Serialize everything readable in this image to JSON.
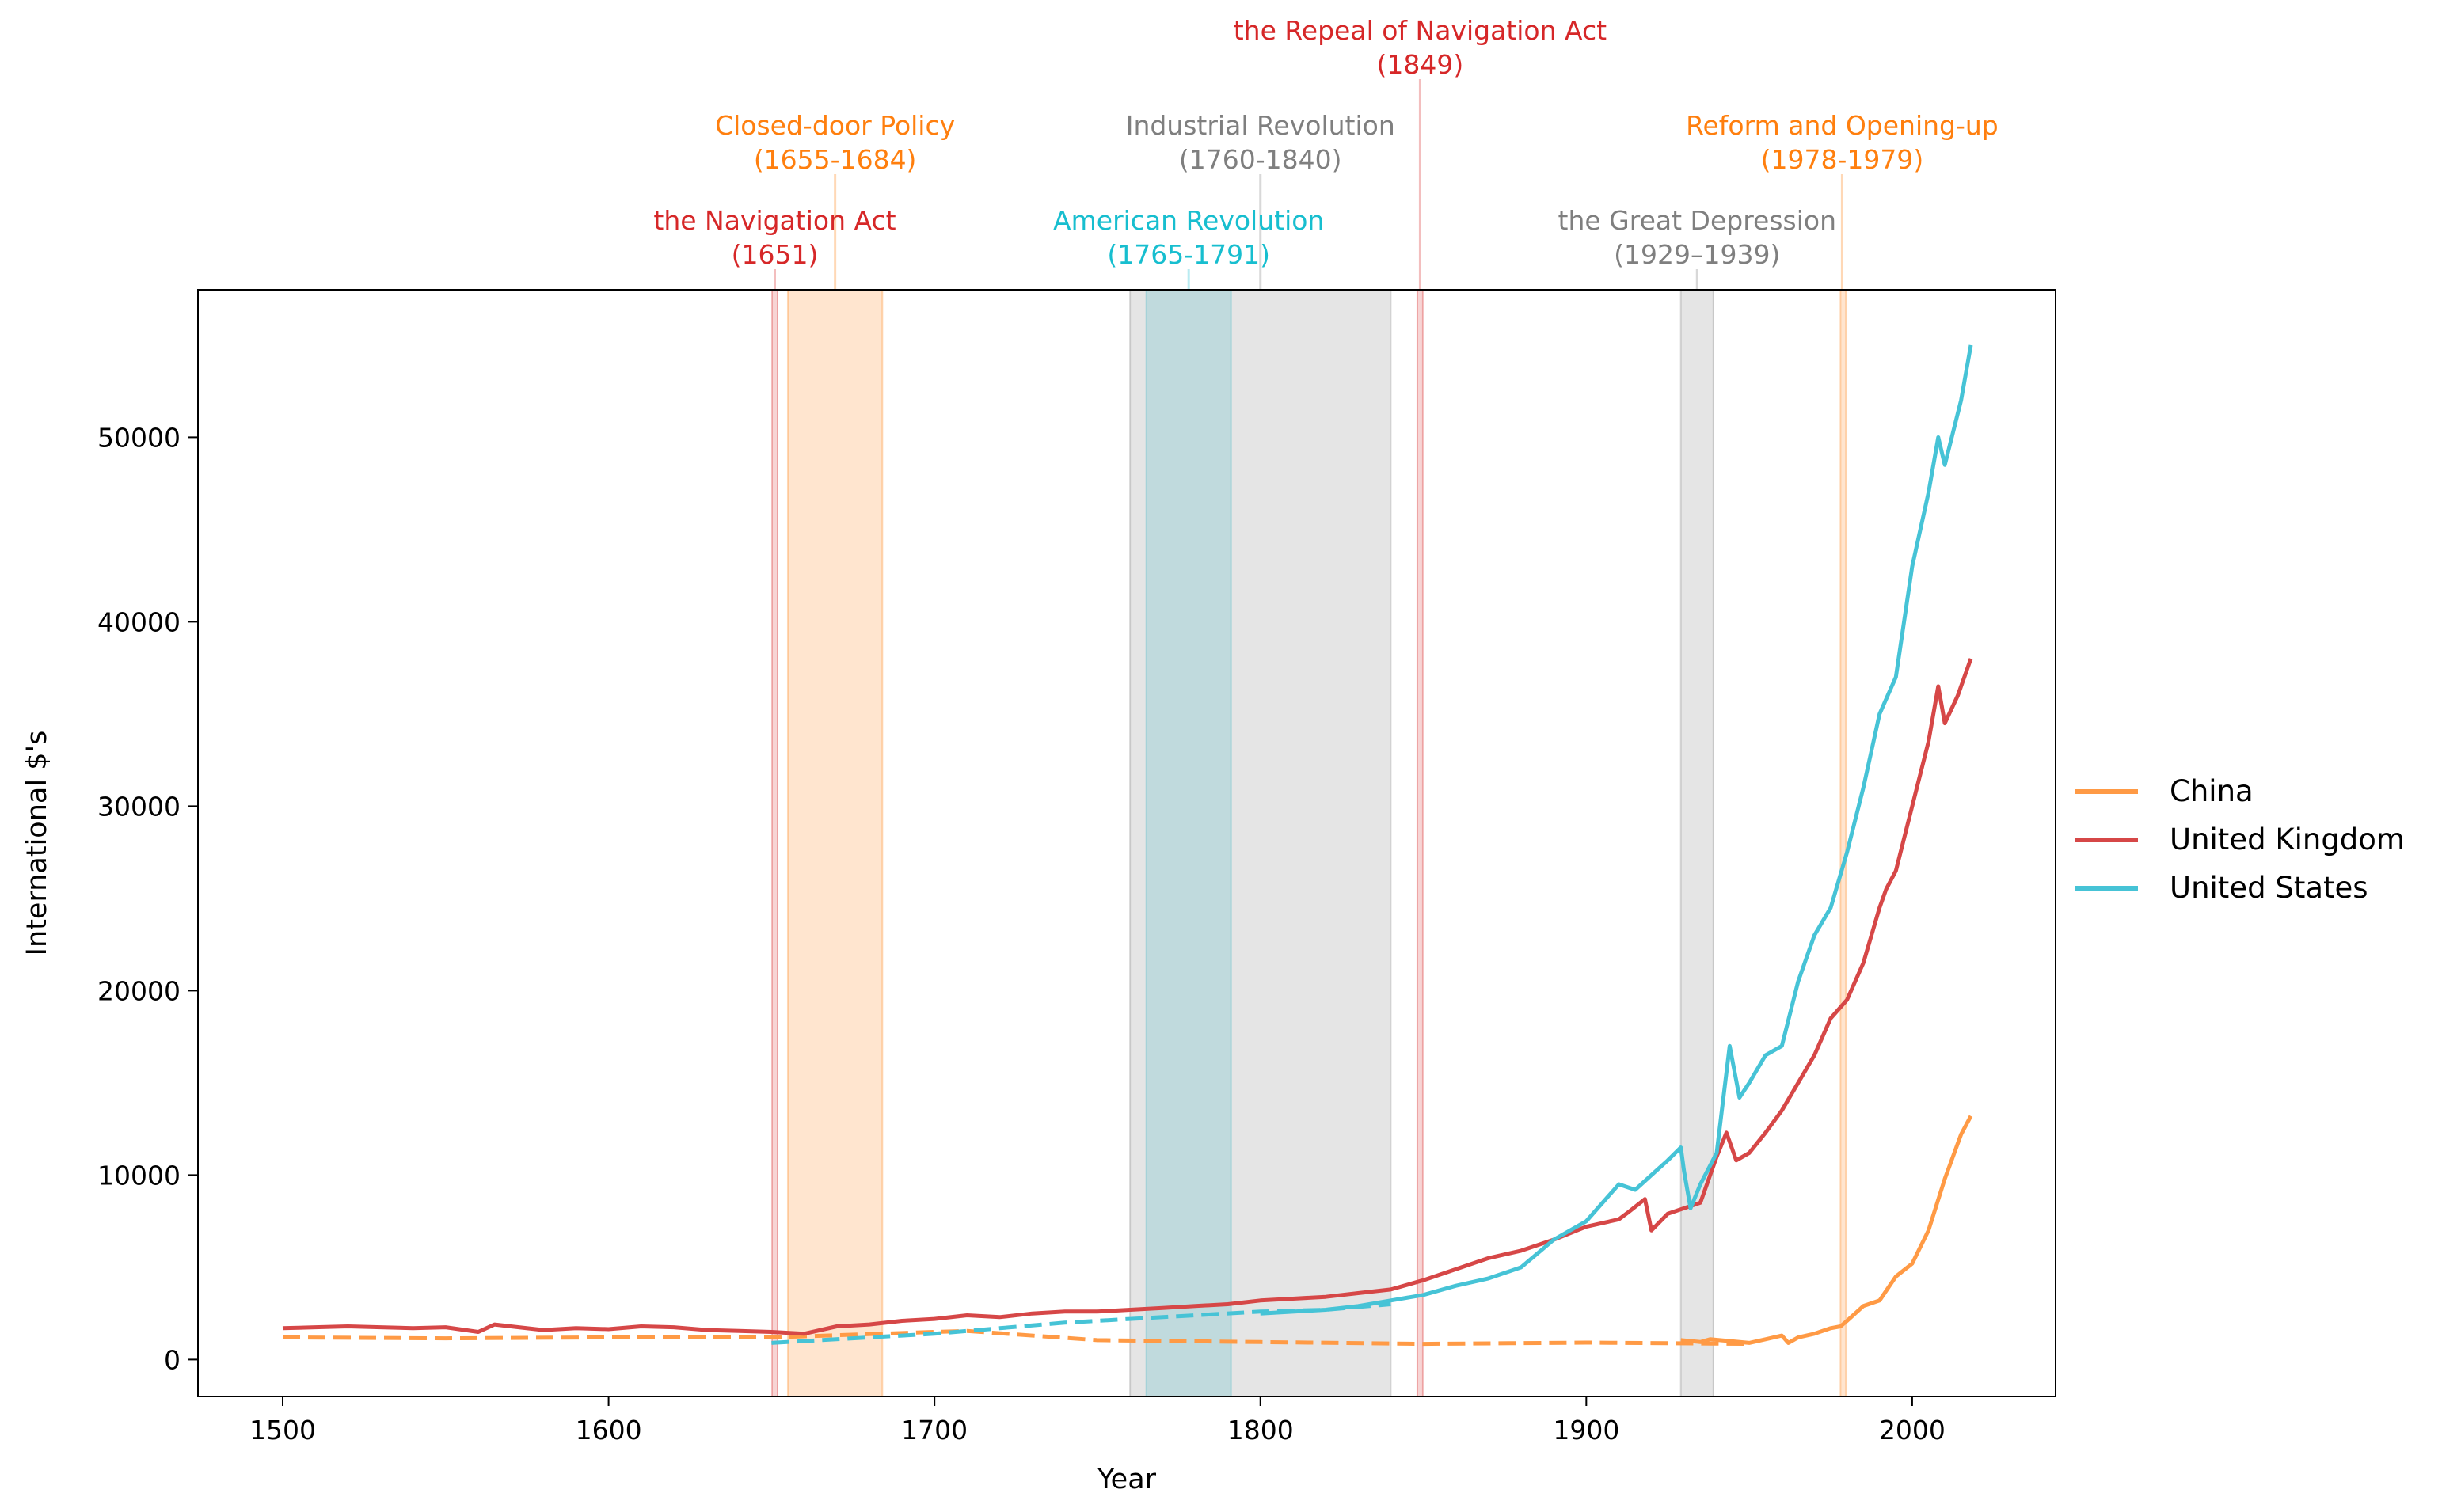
{
  "chart_data": {
    "type": "line",
    "xlabel": "Year",
    "ylabel": "International $'s",
    "xlim": [
      1474,
      2044
    ],
    "ylim": [
      -2000,
      58000
    ],
    "xticks": [
      1500,
      1600,
      1700,
      1800,
      1900,
      2000
    ],
    "yticks": [
      0,
      10000,
      20000,
      30000,
      40000,
      50000
    ],
    "grid": false,
    "legend_position": "right",
    "series": [
      {
        "name": "China",
        "color": "#ff9a45",
        "dashed_segment": [
          [
            1500,
            1200
          ],
          [
            1550,
            1150
          ],
          [
            1600,
            1200
          ],
          [
            1650,
            1200
          ],
          [
            1700,
            1500
          ],
          [
            1710,
            1550
          ],
          [
            1750,
            1050
          ],
          [
            1800,
            950
          ],
          [
            1850,
            850
          ],
          [
            1900,
            920
          ],
          [
            1950,
            850
          ]
        ],
        "solid_segment": [
          [
            1929,
            1050
          ],
          [
            1935,
            950
          ],
          [
            1938,
            1100
          ],
          [
            1950,
            900
          ],
          [
            1955,
            1100
          ],
          [
            1960,
            1300
          ],
          [
            1962,
            900
          ],
          [
            1965,
            1200
          ],
          [
            1970,
            1400
          ],
          [
            1975,
            1700
          ],
          [
            1978,
            1800
          ],
          [
            1980,
            2100
          ],
          [
            1985,
            2900
          ],
          [
            1990,
            3200
          ],
          [
            1995,
            4500
          ],
          [
            2000,
            5200
          ],
          [
            2005,
            7000
          ],
          [
            2010,
            9800
          ],
          [
            2015,
            12200
          ],
          [
            2018,
            13200
          ]
        ]
      },
      {
        "name": "United Kingdom",
        "color": "#d64747",
        "points": [
          [
            1500,
            1700
          ],
          [
            1510,
            1750
          ],
          [
            1520,
            1800
          ],
          [
            1530,
            1750
          ],
          [
            1540,
            1700
          ],
          [
            1550,
            1750
          ],
          [
            1560,
            1500
          ],
          [
            1565,
            1900
          ],
          [
            1570,
            1800
          ],
          [
            1580,
            1600
          ],
          [
            1590,
            1700
          ],
          [
            1600,
            1650
          ],
          [
            1610,
            1800
          ],
          [
            1620,
            1750
          ],
          [
            1630,
            1600
          ],
          [
            1640,
            1550
          ],
          [
            1650,
            1500
          ],
          [
            1660,
            1400
          ],
          [
            1670,
            1800
          ],
          [
            1680,
            1900
          ],
          [
            1690,
            2100
          ],
          [
            1700,
            2200
          ],
          [
            1710,
            2400
          ],
          [
            1720,
            2300
          ],
          [
            1730,
            2500
          ],
          [
            1740,
            2600
          ],
          [
            1750,
            2600
          ],
          [
            1760,
            2700
          ],
          [
            1770,
            2800
          ],
          [
            1780,
            2900
          ],
          [
            1790,
            3000
          ],
          [
            1800,
            3200
          ],
          [
            1810,
            3300
          ],
          [
            1820,
            3400
          ],
          [
            1830,
            3600
          ],
          [
            1840,
            3800
          ],
          [
            1850,
            4300
          ],
          [
            1860,
            4900
          ],
          [
            1870,
            5500
          ],
          [
            1880,
            5900
          ],
          [
            1890,
            6500
          ],
          [
            1900,
            7200
          ],
          [
            1910,
            7600
          ],
          [
            1913,
            8000
          ],
          [
            1918,
            8700
          ],
          [
            1920,
            7000
          ],
          [
            1925,
            7900
          ],
          [
            1930,
            8200
          ],
          [
            1935,
            8500
          ],
          [
            1940,
            11000
          ],
          [
            1943,
            12300
          ],
          [
            1946,
            10800
          ],
          [
            1950,
            11200
          ],
          [
            1955,
            12300
          ],
          [
            1960,
            13500
          ],
          [
            1965,
            15000
          ],
          [
            1970,
            16500
          ],
          [
            1975,
            18500
          ],
          [
            1980,
            19500
          ],
          [
            1985,
            21500
          ],
          [
            1990,
            24500
          ],
          [
            1992,
            25500
          ],
          [
            1995,
            26500
          ],
          [
            2000,
            30000
          ],
          [
            2005,
            33500
          ],
          [
            2008,
            36500
          ],
          [
            2010,
            34500
          ],
          [
            2014,
            36000
          ],
          [
            2018,
            38000
          ]
        ]
      },
      {
        "name": "United States",
        "color": "#46c3d6",
        "dashed_segment": [
          [
            1650,
            900
          ],
          [
            1660,
            1000
          ],
          [
            1680,
            1200
          ],
          [
            1700,
            1400
          ],
          [
            1720,
            1700
          ],
          [
            1740,
            2000
          ],
          [
            1760,
            2200
          ],
          [
            1780,
            2400
          ],
          [
            1800,
            2600
          ],
          [
            1820,
            2700
          ],
          [
            1840,
            3000
          ]
        ],
        "solid_segment": [
          [
            1800,
            2500
          ],
          [
            1820,
            2700
          ],
          [
            1830,
            2900
          ],
          [
            1840,
            3200
          ],
          [
            1850,
            3500
          ],
          [
            1860,
            4000
          ],
          [
            1870,
            4400
          ],
          [
            1880,
            5000
          ],
          [
            1890,
            6500
          ],
          [
            1900,
            7500
          ],
          [
            1905,
            8500
          ],
          [
            1910,
            9500
          ],
          [
            1915,
            9200
          ],
          [
            1920,
            10000
          ],
          [
            1925,
            10800
          ],
          [
            1929,
            11500
          ],
          [
            1930,
            10200
          ],
          [
            1932,
            8200
          ],
          [
            1935,
            9500
          ],
          [
            1940,
            11200
          ],
          [
            1944,
            17000
          ],
          [
            1947,
            14200
          ],
          [
            1950,
            15000
          ],
          [
            1955,
            16500
          ],
          [
            1960,
            17000
          ],
          [
            1965,
            20500
          ],
          [
            1970,
            23000
          ],
          [
            1975,
            24500
          ],
          [
            1980,
            27500
          ],
          [
            1985,
            31000
          ],
          [
            1990,
            35000
          ],
          [
            1995,
            37000
          ],
          [
            2000,
            43000
          ],
          [
            2005,
            47000
          ],
          [
            2008,
            50000
          ],
          [
            2010,
            48500
          ],
          [
            2015,
            52000
          ],
          [
            2018,
            55000
          ]
        ]
      }
    ],
    "events": [
      {
        "label": "the Navigation Act",
        "period": "(1651)",
        "start": 1651,
        "end": 1651,
        "color": "#d62728",
        "text_color": "#d62728",
        "tier": 0
      },
      {
        "label": "Closed-door Policy",
        "period": "(1655-1684)",
        "start": 1655,
        "end": 1684,
        "color": "#ff7f0e",
        "text_color": "#ff7f0e",
        "tier": 1
      },
      {
        "label": "American Revolution",
        "period": "(1765-1791)",
        "start": 1765,
        "end": 1791,
        "color": "#17becf",
        "text_color": "#17becf",
        "tier": 0
      },
      {
        "label": "Industrial Revolution",
        "period": "(1760-1840)",
        "start": 1760,
        "end": 1840,
        "color": "#7f7f7f",
        "text_color": "#7f7f7f",
        "tier": 1
      },
      {
        "label": "the Repeal of Navigation Act",
        "period": "(1849)",
        "start": 1849,
        "end": 1849,
        "color": "#d62728",
        "text_color": "#d62728",
        "tier": 2
      },
      {
        "label": "the Great Depression",
        "period": "(1929–1939)",
        "start": 1929,
        "end": 1939,
        "color": "#7f7f7f",
        "text_color": "#7f7f7f",
        "tier": 0
      },
      {
        "label": "Reform and Opening-up",
        "period": "(1978-1979)",
        "start": 1978,
        "end": 1979,
        "color": "#ff7f0e",
        "text_color": "#ff7f0e",
        "tier": 1
      }
    ]
  }
}
